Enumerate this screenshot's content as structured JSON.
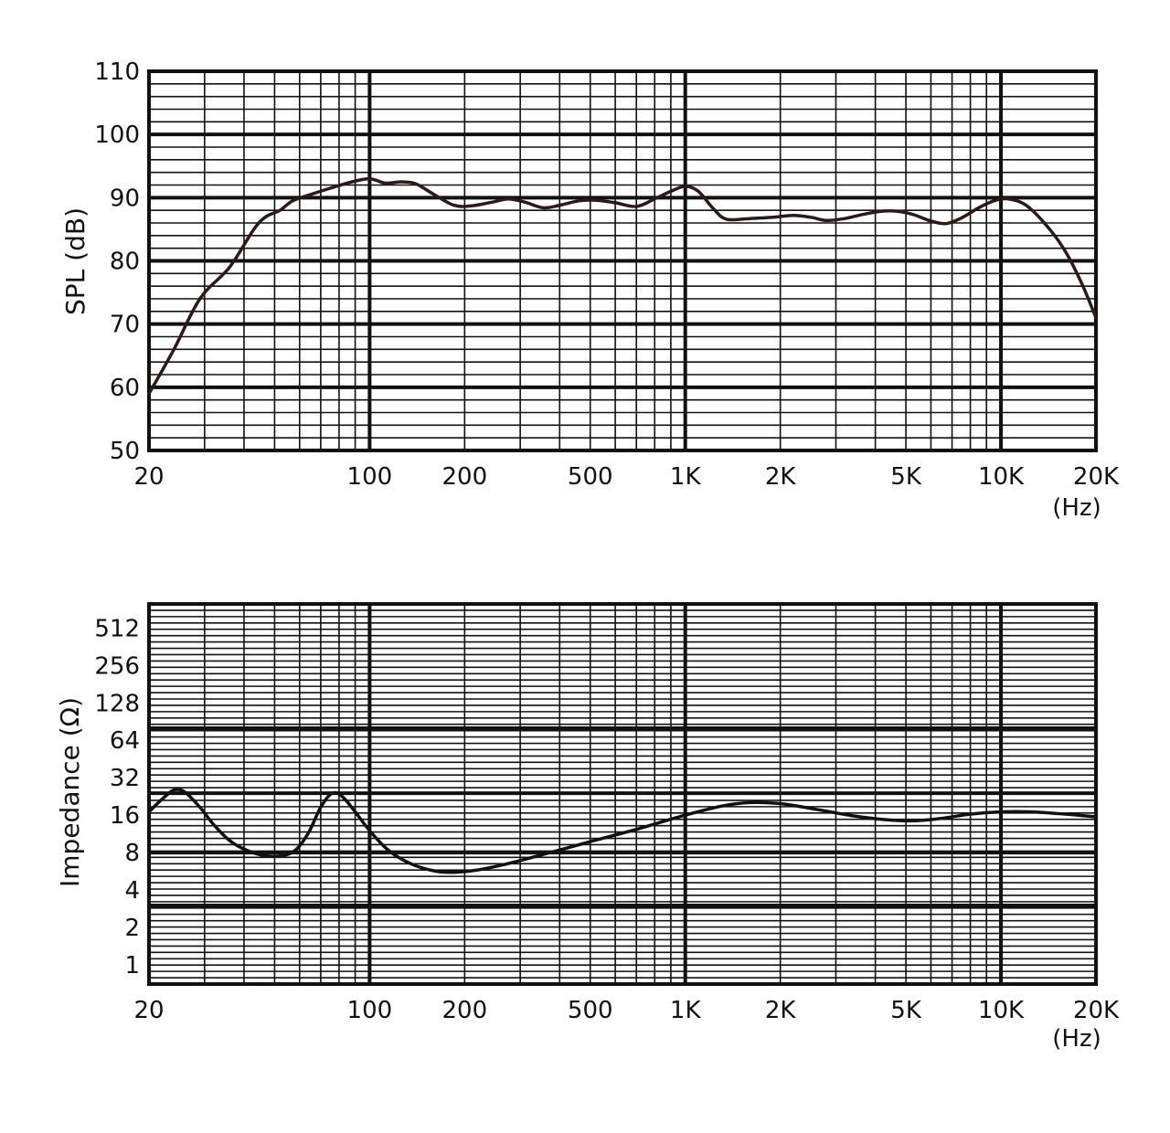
{
  "chart_data": [
    {
      "type": "line",
      "x_scale": "log",
      "xlim": [
        20,
        20000
      ],
      "ylim": [
        50,
        110
      ],
      "ylabel": "SPL (dB)",
      "x_unit": "(Hz)",
      "grid": true,
      "x_tick_labels": [
        {
          "value": 20,
          "label": "20"
        },
        {
          "value": 100,
          "label": "100"
        },
        {
          "value": 200,
          "label": "200"
        },
        {
          "value": 500,
          "label": "500"
        },
        {
          "value": 1000,
          "label": "1K"
        },
        {
          "value": 2000,
          "label": "2K"
        },
        {
          "value": 5000,
          "label": "5K"
        },
        {
          "value": 10000,
          "label": "10K"
        },
        {
          "value": 20000,
          "label": "20K"
        }
      ],
      "y_tick_labels": [
        {
          "value": 50,
          "label": "50"
        },
        {
          "value": 60,
          "label": "60"
        },
        {
          "value": 70,
          "label": "70"
        },
        {
          "value": 80,
          "label": "80"
        },
        {
          "value": 90,
          "label": "90"
        },
        {
          "value": 100,
          "label": "100"
        },
        {
          "value": 110,
          "label": "110"
        }
      ],
      "series": [
        {
          "color": "#2a1a1a",
          "points": [
            [
              20,
              59
            ],
            [
              24,
              66
            ],
            [
              29,
              74
            ],
            [
              36,
              79
            ],
            [
              43,
              85
            ],
            [
              47,
              87
            ],
            [
              52,
              88
            ],
            [
              57,
              89.5
            ],
            [
              65,
              90.5
            ],
            [
              75,
              91.5
            ],
            [
              88,
              92.5
            ],
            [
              100,
              93
            ],
            [
              112,
              92.3
            ],
            [
              126,
              92.5
            ],
            [
              140,
              92.2
            ],
            [
              160,
              90.5
            ],
            [
              185,
              88.8
            ],
            [
              210,
              88.7
            ],
            [
              245,
              89.3
            ],
            [
              275,
              89.8
            ],
            [
              310,
              89.3
            ],
            [
              355,
              88.4
            ],
            [
              400,
              88.8
            ],
            [
              460,
              89.5
            ],
            [
              520,
              89.6
            ],
            [
              600,
              89.2
            ],
            [
              700,
              88.6
            ],
            [
              800,
              89.8
            ],
            [
              900,
              91.0
            ],
            [
              1000,
              91.8
            ],
            [
              1100,
              91.0
            ],
            [
              1230,
              88.2
            ],
            [
              1350,
              86.6
            ],
            [
              1600,
              86.7
            ],
            [
              1900,
              86.9
            ],
            [
              2200,
              87.2
            ],
            [
              2500,
              86.9
            ],
            [
              2800,
              86.4
            ],
            [
              3200,
              86.7
            ],
            [
              3700,
              87.4
            ],
            [
              4300,
              87.9
            ],
            [
              4800,
              87.8
            ],
            [
              5300,
              87.3
            ],
            [
              6000,
              86.3
            ],
            [
              6700,
              85.9
            ],
            [
              7500,
              86.8
            ],
            [
              8500,
              88.4
            ],
            [
              9500,
              89.5
            ],
            [
              10500,
              89.8
            ],
            [
              12000,
              88.8
            ],
            [
              14000,
              85.5
            ],
            [
              16000,
              81.5
            ],
            [
              18000,
              76.5
            ],
            [
              20000,
              71
            ]
          ]
        }
      ]
    },
    {
      "type": "line",
      "x_scale": "log",
      "xlim": [
        20,
        20000
      ],
      "y_scale": "log2",
      "ylim": [
        0.7,
        800
      ],
      "ylabel": "Impedance (Ω)",
      "x_unit": "(Hz)",
      "grid": true,
      "x_tick_labels": [
        {
          "value": 20,
          "label": "20"
        },
        {
          "value": 100,
          "label": "100"
        },
        {
          "value": 200,
          "label": "200"
        },
        {
          "value": 500,
          "label": "500"
        },
        {
          "value": 1000,
          "label": "1K"
        },
        {
          "value": 2000,
          "label": "2K"
        },
        {
          "value": 5000,
          "label": "5K"
        },
        {
          "value": 10000,
          "label": "10K"
        },
        {
          "value": 20000,
          "label": "20K"
        }
      ],
      "y_tick_labels": [
        {
          "value": 1,
          "label": "1"
        },
        {
          "value": 2,
          "label": "2"
        },
        {
          "value": 4,
          "label": "4"
        },
        {
          "value": 8,
          "label": "8"
        },
        {
          "value": 16,
          "label": "16"
        },
        {
          "value": 32,
          "label": "32"
        },
        {
          "value": 64,
          "label": "64"
        },
        {
          "value": 128,
          "label": "128"
        },
        {
          "value": 256,
          "label": "256"
        },
        {
          "value": 512,
          "label": "512"
        }
      ],
      "series": [
        {
          "color": "#111111",
          "points": [
            [
              20,
              17
            ],
            [
              22,
              21.5
            ],
            [
              24,
              25.5
            ],
            [
              26,
              24.5
            ],
            [
              29,
              18.5
            ],
            [
              32,
              13.5
            ],
            [
              36,
              10
            ],
            [
              41,
              8.3
            ],
            [
              46,
              7.6
            ],
            [
              52,
              7.5
            ],
            [
              58,
              8.3
            ],
            [
              64,
              11.5
            ],
            [
              70,
              18.5
            ],
            [
              76,
              24
            ],
            [
              82,
              22.5
            ],
            [
              90,
              17
            ],
            [
              100,
              12
            ],
            [
              115,
              8.3
            ],
            [
              135,
              6.5
            ],
            [
              160,
              5.7
            ],
            [
              185,
              5.55
            ],
            [
              220,
              5.8
            ],
            [
              280,
              6.6
            ],
            [
              380,
              8.1
            ],
            [
              500,
              9.8
            ],
            [
              700,
              12.3
            ],
            [
              1000,
              16
            ],
            [
              1300,
              18.9
            ],
            [
              1600,
              20.2
            ],
            [
              2000,
              19.8
            ],
            [
              2600,
              17.8
            ],
            [
              3400,
              15.8
            ],
            [
              4200,
              14.8
            ],
            [
              5200,
              14.4
            ],
            [
              6400,
              15.0
            ],
            [
              8000,
              16.3
            ],
            [
              10000,
              17.0
            ],
            [
              12500,
              17.0
            ],
            [
              16000,
              16.3
            ],
            [
              20000,
              15.5
            ]
          ]
        }
      ]
    }
  ]
}
